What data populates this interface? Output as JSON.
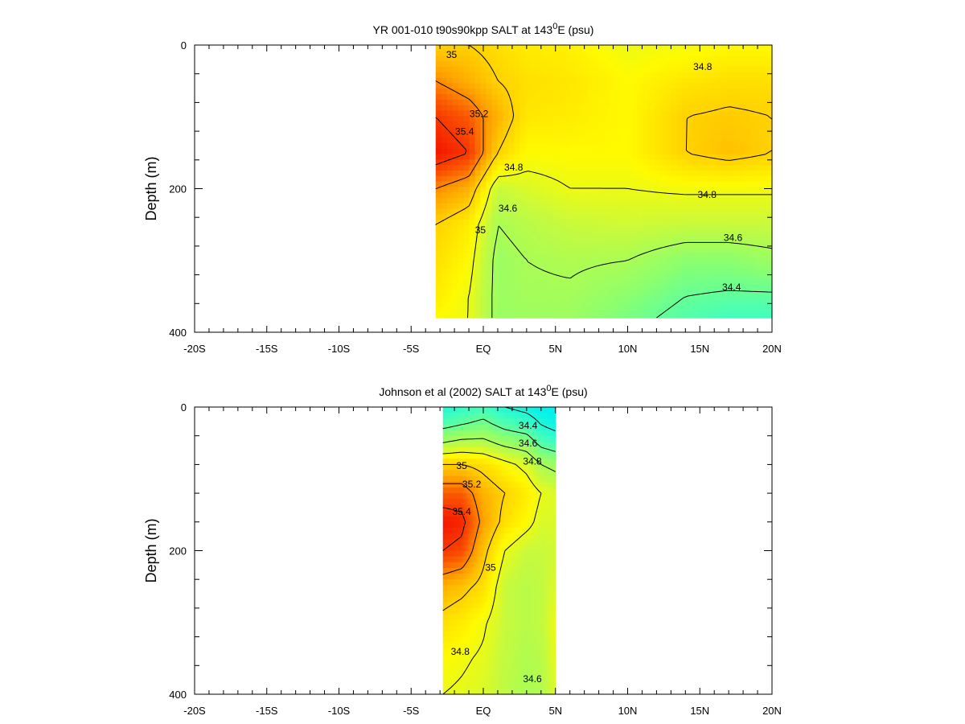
{
  "chart_data": [
    {
      "type": "heatmap",
      "title": "YR 001-010 t90s90kpp SALT at 143",
      "title_sup": "0",
      "title_suffix": "E (psu)",
      "ylabel": "Depth (m)",
      "xlabel": "",
      "xlim": [
        -20,
        20
      ],
      "ylim": [
        400,
        0
      ],
      "x_tick_values": [
        -20,
        -15,
        -10,
        -5,
        0,
        5,
        10,
        15,
        20
      ],
      "x_tick_labels": [
        "-20S",
        "-15S",
        "-10S",
        "-5S",
        "EQ",
        "5N",
        "10N",
        "15N",
        "20N"
      ],
      "y_tick_values": [
        0,
        200,
        400
      ],
      "y_tick_labels": [
        "0",
        "200",
        "400"
      ],
      "data_extent": {
        "x": [
          -3.3,
          20
        ],
        "y": [
          0,
          380
        ]
      },
      "grid_x": [
        -3.3,
        -1,
        1,
        3,
        6,
        10,
        14,
        17,
        20
      ],
      "grid_y": [
        0,
        50,
        100,
        150,
        200,
        250,
        300,
        350,
        380
      ],
      "values": [
        [
          35.0,
          35.0,
          34.95,
          34.9,
          34.88,
          34.8,
          34.82,
          34.85,
          34.85
        ],
        [
          35.2,
          35.1,
          35.0,
          34.95,
          34.92,
          34.85,
          34.92,
          34.95,
          34.95
        ],
        [
          35.4,
          35.3,
          35.1,
          34.92,
          34.9,
          34.85,
          35.0,
          35.02,
          35.0
        ],
        [
          35.5,
          35.4,
          35.0,
          34.85,
          34.85,
          34.85,
          35.0,
          35.05,
          35.0
        ],
        [
          35.2,
          35.1,
          34.7,
          34.75,
          34.8,
          34.8,
          34.82,
          34.82,
          34.82
        ],
        [
          35.0,
          34.9,
          34.6,
          34.65,
          34.7,
          34.72,
          34.7,
          34.7,
          34.7
        ],
        [
          34.95,
          34.85,
          34.55,
          34.6,
          34.62,
          34.6,
          34.5,
          34.5,
          34.55
        ],
        [
          34.9,
          34.8,
          34.55,
          34.58,
          34.58,
          34.5,
          34.4,
          34.38,
          34.38
        ],
        [
          34.85,
          34.8,
          34.55,
          34.56,
          34.55,
          34.45,
          34.35,
          34.3,
          34.3
        ]
      ],
      "contour_levels": [
        34.4,
        34.6,
        34.8,
        35.0,
        35.2,
        35.4
      ],
      "contour_labels": [
        {
          "text": "35",
          "x": -2.2,
          "y": 18
        },
        {
          "text": "35.2",
          "x": -0.3,
          "y": 100
        },
        {
          "text": "35.4",
          "x": -1.3,
          "y": 125
        },
        {
          "text": "34.8",
          "x": 2.1,
          "y": 175
        },
        {
          "text": "34.8",
          "x": 15.2,
          "y": 35
        },
        {
          "text": "34.8",
          "x": 15.5,
          "y": 213
        },
        {
          "text": "34.6",
          "x": 1.7,
          "y": 232
        },
        {
          "text": "35",
          "x": -0.2,
          "y": 262
        },
        {
          "text": "34.6",
          "x": 17.3,
          "y": 273
        },
        {
          "text": "34.4",
          "x": 17.2,
          "y": 342
        }
      ]
    },
    {
      "type": "heatmap",
      "title": "Johnson et al (2002) SALT at 143",
      "title_sup": "0",
      "title_suffix": "E (psu)",
      "ylabel": "Depth (m)",
      "xlabel": "",
      "xlim": [
        -20,
        20
      ],
      "ylim": [
        400,
        0
      ],
      "x_tick_values": [
        -20,
        -15,
        -10,
        -5,
        0,
        5,
        10,
        15,
        20
      ],
      "x_tick_labels": [
        "-20S",
        "-15S",
        "-10S",
        "-5S",
        "EQ",
        "5N",
        "10N",
        "15N",
        "20N"
      ],
      "y_tick_values": [
        0,
        200,
        400
      ],
      "y_tick_labels": [
        "0",
        "200",
        "400"
      ],
      "data_extent": {
        "x": [
          -2.8,
          5
        ],
        "y": [
          0,
          400
        ]
      },
      "grid_x": [
        -2.8,
        -1.5,
        0,
        1.5,
        3,
        4,
        5
      ],
      "grid_y": [
        0,
        25,
        50,
        80,
        120,
        160,
        200,
        250,
        300,
        350,
        400
      ],
      "values": [
        [
          34.2,
          34.25,
          34.3,
          34.2,
          34.15,
          34.1,
          34.1
        ],
        [
          34.35,
          34.4,
          34.45,
          34.35,
          34.3,
          34.2,
          34.15
        ],
        [
          34.6,
          34.65,
          34.65,
          34.55,
          34.5,
          34.35,
          34.3
        ],
        [
          35.0,
          35.0,
          34.95,
          34.85,
          34.75,
          34.6,
          34.55
        ],
        [
          35.3,
          35.3,
          35.1,
          35.0,
          34.9,
          34.8,
          34.75
        ],
        [
          35.5,
          35.45,
          35.15,
          34.95,
          34.85,
          34.75,
          34.75
        ],
        [
          35.4,
          35.35,
          35.05,
          34.8,
          34.7,
          34.7,
          34.72
        ],
        [
          35.1,
          35.05,
          34.95,
          34.7,
          34.65,
          34.68,
          34.75
        ],
        [
          34.95,
          34.9,
          34.82,
          34.7,
          34.65,
          34.68,
          34.8
        ],
        [
          34.85,
          34.82,
          34.78,
          34.68,
          34.62,
          34.65,
          34.78
        ],
        [
          34.8,
          34.78,
          34.75,
          34.67,
          34.6,
          34.62,
          34.75
        ]
      ],
      "contour_levels": [
        34.2,
        34.4,
        34.6,
        34.8,
        35.0,
        35.2,
        35.4
      ],
      "contour_labels": [
        {
          "text": "34.4",
          "x": 3.1,
          "y": 30
        },
        {
          "text": "34.6",
          "x": 3.1,
          "y": 55
        },
        {
          "text": "34.8",
          "x": 3.4,
          "y": 80
        },
        {
          "text": "35",
          "x": -1.5,
          "y": 86
        },
        {
          "text": "35.2",
          "x": -0.8,
          "y": 112
        },
        {
          "text": "35.4",
          "x": -1.5,
          "y": 150
        },
        {
          "text": "35",
          "x": 0.5,
          "y": 228
        },
        {
          "text": "34.8",
          "x": -1.6,
          "y": 345
        },
        {
          "text": "34.6",
          "x": 3.4,
          "y": 383
        }
      ]
    }
  ]
}
